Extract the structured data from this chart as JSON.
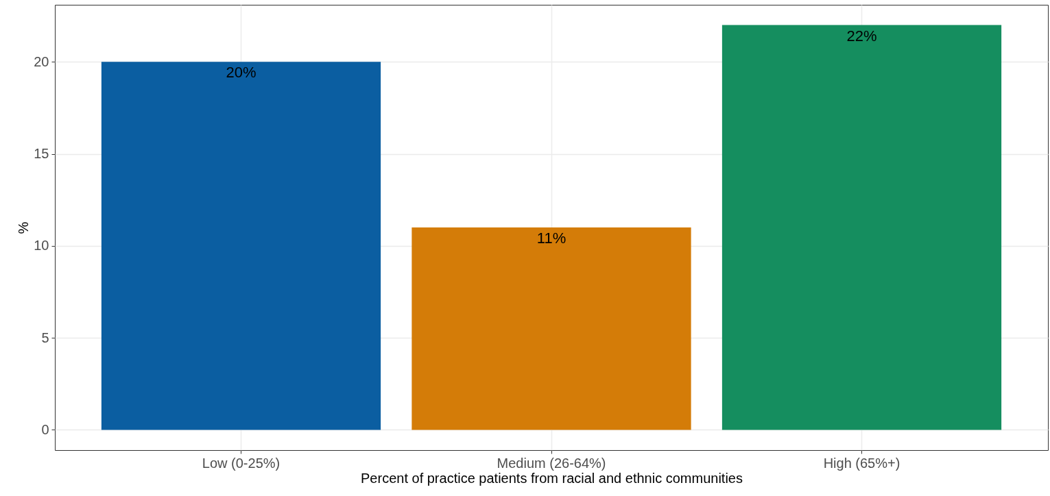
{
  "chart_data": {
    "type": "bar",
    "categories": [
      "Low (0-25%)",
      "Medium (26-64%)",
      "High (65%+)"
    ],
    "values": [
      20,
      11,
      22
    ],
    "value_labels": [
      "20%",
      "11%",
      "22%"
    ],
    "colors": [
      "#0b5ea1",
      "#d47c08",
      "#158e5f"
    ],
    "xlabel": "Percent of practice patients from racial and ethnic communities",
    "ylabel": "%",
    "ylim": [
      -1.1,
      23.1
    ],
    "yticks": [
      0,
      5,
      10,
      15,
      20
    ],
    "grid": true
  }
}
